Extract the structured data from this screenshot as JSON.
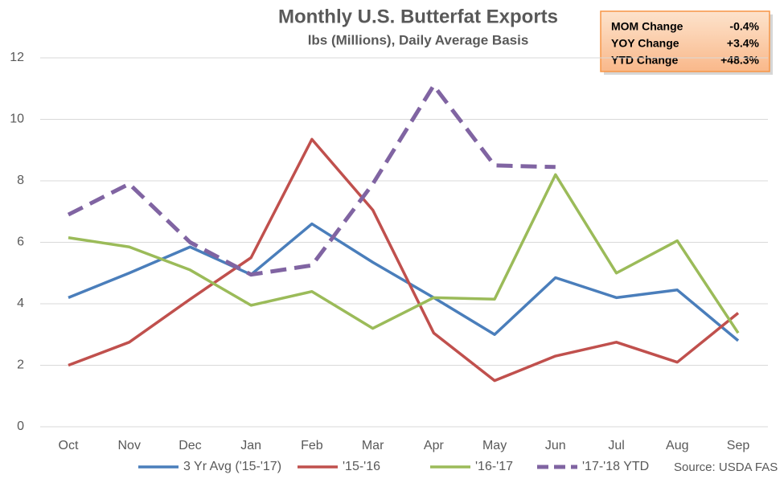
{
  "chart_data": {
    "type": "line",
    "title": "Monthly U.S. Butterfat Exports",
    "subtitle": "lbs (Millions), Daily Average Basis",
    "categories": [
      "Oct",
      "Nov",
      "Dec",
      "Jan",
      "Feb",
      "Mar",
      "Apr",
      "May",
      "Jun",
      "Jul",
      "Aug",
      "Sep"
    ],
    "series": [
      {
        "name": "3 Yr Avg ('15-'17)",
        "color": "#4a7ebb",
        "dashed": false,
        "values": [
          4.2,
          5.0,
          5.85,
          4.95,
          6.6,
          5.35,
          4.2,
          3.0,
          4.85,
          4.2,
          4.45,
          2.8
        ]
      },
      {
        "name": "'15-'16",
        "color": "#c0504d",
        "dashed": false,
        "values": [
          2.0,
          2.75,
          4.15,
          5.5,
          9.35,
          7.05,
          3.05,
          1.5,
          2.3,
          2.75,
          2.1,
          3.7
        ]
      },
      {
        "name": "'16-'17",
        "color": "#9bbb59",
        "dashed": false,
        "values": [
          6.15,
          5.85,
          5.1,
          3.95,
          4.4,
          3.2,
          4.2,
          4.15,
          8.2,
          5.0,
          6.05,
          3.05
        ]
      },
      {
        "name": "'17-'18 YTD",
        "color": "#8064a2",
        "dashed": true,
        "values": [
          6.9,
          7.9,
          6.0,
          4.95,
          5.25,
          7.9,
          11.1,
          8.5,
          8.45,
          null,
          null,
          null
        ]
      }
    ],
    "ylim": [
      0,
      12
    ],
    "yticks": [
      0,
      2,
      4,
      6,
      8,
      10,
      12
    ],
    "grid": true,
    "legend": "bottom",
    "source": "Source: USDA FAS",
    "info_box": {
      "rows": [
        [
          "MOM Change",
          "-0.4%"
        ],
        [
          "YOY Change",
          "+3.4%"
        ],
        [
          "YTD Change",
          "+48.3%"
        ]
      ]
    }
  }
}
